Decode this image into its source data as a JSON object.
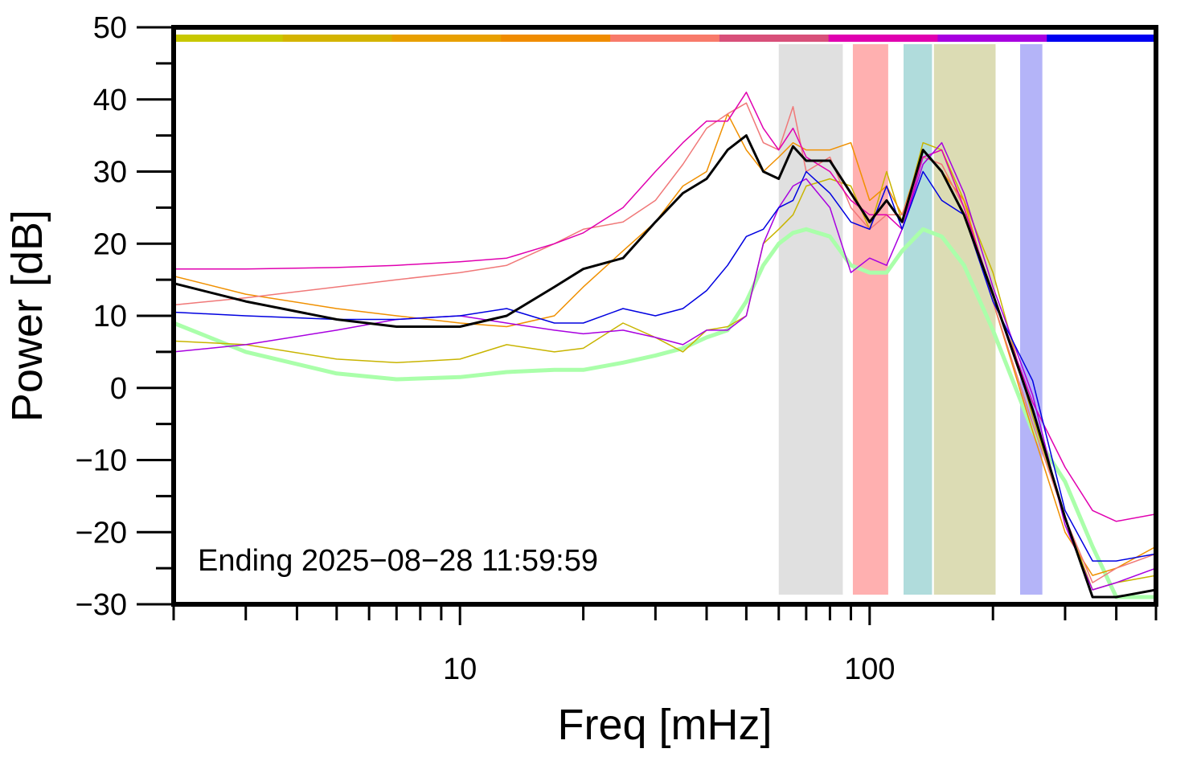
{
  "chart_data": {
    "type": "line",
    "xlabel": "Freq [mHz]",
    "ylabel": "Power [dB]",
    "annotation": "Ending 2025−08−28 11:59:59",
    "xscale": "log",
    "xlim": [
      2,
      500
    ],
    "ylim": [
      -30,
      50
    ],
    "xticks": [
      10,
      100
    ],
    "xminor_ticks": [
      2,
      3,
      4,
      5,
      6,
      7,
      8,
      9,
      20,
      30,
      40,
      50,
      60,
      70,
      80,
      90,
      200,
      300,
      400,
      500
    ],
    "yticks": [
      {
        "value": -30,
        "label": "−30"
      },
      {
        "value": -20,
        "label": "−20"
      },
      {
        "value": -10,
        "label": "−10"
      },
      0,
      10,
      20,
      30,
      40,
      50
    ],
    "yminor_ticks": [
      -25,
      -15,
      -5,
      5,
      15,
      25,
      35,
      45
    ],
    "color_bar": [
      "#c8c800",
      "#d4b400",
      "#e8a000",
      "#f08c00",
      "#f87a6a",
      "#d8507a",
      "#e000b0",
      "#a800e0",
      "#0000f0"
    ],
    "bands": [
      {
        "xlim": [
          60,
          86
        ],
        "color": "#e0e0e0"
      },
      {
        "xlim": [
          91,
          111
        ],
        "color": "#ffb0b0"
      },
      {
        "xlim": [
          121,
          142
        ],
        "color": "#b0dcdc"
      },
      {
        "xlim": [
          143.5,
          203
        ],
        "color": "#dcdcb4"
      },
      {
        "xlim": [
          233,
          264
        ],
        "color": "#b4b4f8"
      }
    ],
    "x": [
      2,
      3,
      5,
      7,
      10,
      13,
      17,
      20,
      25,
      30,
      35,
      40,
      45,
      50,
      55,
      60,
      65,
      70,
      80,
      90,
      100,
      110,
      120,
      135,
      150,
      170,
      200,
      250,
      300,
      350,
      400,
      500
    ],
    "series": [
      {
        "color": "#aaffaa",
        "line_width": 5,
        "values": [
          9,
          5,
          2,
          1.2,
          1.5,
          2.2,
          2.5,
          2.5,
          3.5,
          4.5,
          5.5,
          7,
          8,
          12,
          17,
          20,
          21.5,
          22,
          21,
          17,
          16,
          16,
          19,
          22,
          21,
          17,
          8,
          -6,
          -13,
          -22,
          -29,
          -29
        ]
      },
      {
        "color": "#c8b400",
        "line_width": 1.5,
        "values": [
          6.5,
          6,
          4,
          3.5,
          4,
          6,
          5,
          5.5,
          9,
          7,
          5,
          8,
          8.5,
          10,
          20,
          22,
          24,
          28,
          29,
          28,
          22,
          30,
          23,
          34,
          33,
          26,
          16,
          -4,
          -18,
          -28,
          -27,
          -26
        ]
      },
      {
        "color": "#f09000",
        "line_width": 1.5,
        "values": [
          15.5,
          13,
          11,
          10,
          9,
          8.5,
          10,
          14,
          19,
          23,
          28,
          30,
          38,
          33,
          30,
          32,
          34,
          33,
          33,
          34,
          26,
          28,
          24,
          33,
          30,
          26,
          12,
          -6,
          -20,
          -26,
          -25,
          -22
        ]
      },
      {
        "color": "#f07878",
        "line_width": 1.5,
        "values": [
          11.5,
          12.5,
          14,
          15,
          16,
          17,
          20,
          22,
          23,
          26,
          31,
          36,
          38,
          39.5,
          34,
          33,
          39,
          30,
          32,
          25,
          22,
          24,
          24,
          32,
          31,
          25,
          12,
          -5,
          -18,
          -27,
          -25,
          -23
        ]
      },
      {
        "color": "#e000b0",
        "line_width": 1.5,
        "values": [
          16.5,
          16.5,
          16.7,
          17,
          17.5,
          18,
          20,
          21.5,
          25,
          30,
          34,
          37,
          37,
          41,
          36,
          33,
          36,
          32,
          30,
          26,
          24,
          24,
          22,
          32,
          33,
          25,
          13,
          -2,
          -11,
          -17,
          -18.5,
          -17.5
        ]
      },
      {
        "color": "#a800e0",
        "line_width": 1.5,
        "values": [
          5,
          6,
          8,
          9.5,
          10,
          9,
          8,
          7.5,
          8,
          7,
          6,
          8,
          8,
          10,
          20,
          25,
          28,
          29,
          25,
          16,
          18,
          17,
          22,
          31,
          34,
          27,
          14,
          -1,
          -19,
          -28,
          -27,
          -25
        ]
      },
      {
        "color": "#0000e0",
        "line_width": 1.5,
        "values": [
          10.5,
          10,
          9.5,
          9.5,
          10,
          11,
          9,
          9,
          11,
          10,
          11,
          13.5,
          17,
          21,
          22,
          25,
          26,
          30,
          27,
          23,
          22,
          28,
          22,
          30,
          26,
          24,
          12,
          1,
          -17,
          -24,
          -24,
          -23
        ]
      },
      {
        "color": "#000000",
        "line_width": 3,
        "values": [
          14.5,
          12,
          9.5,
          8.5,
          8.5,
          10,
          14,
          16.5,
          18,
          23,
          27,
          29,
          33,
          35,
          30,
          29,
          33.5,
          31.5,
          31.5,
          27,
          23,
          26,
          23,
          33,
          30,
          24,
          13,
          -3,
          -18,
          -29,
          -29,
          -28
        ]
      }
    ]
  }
}
